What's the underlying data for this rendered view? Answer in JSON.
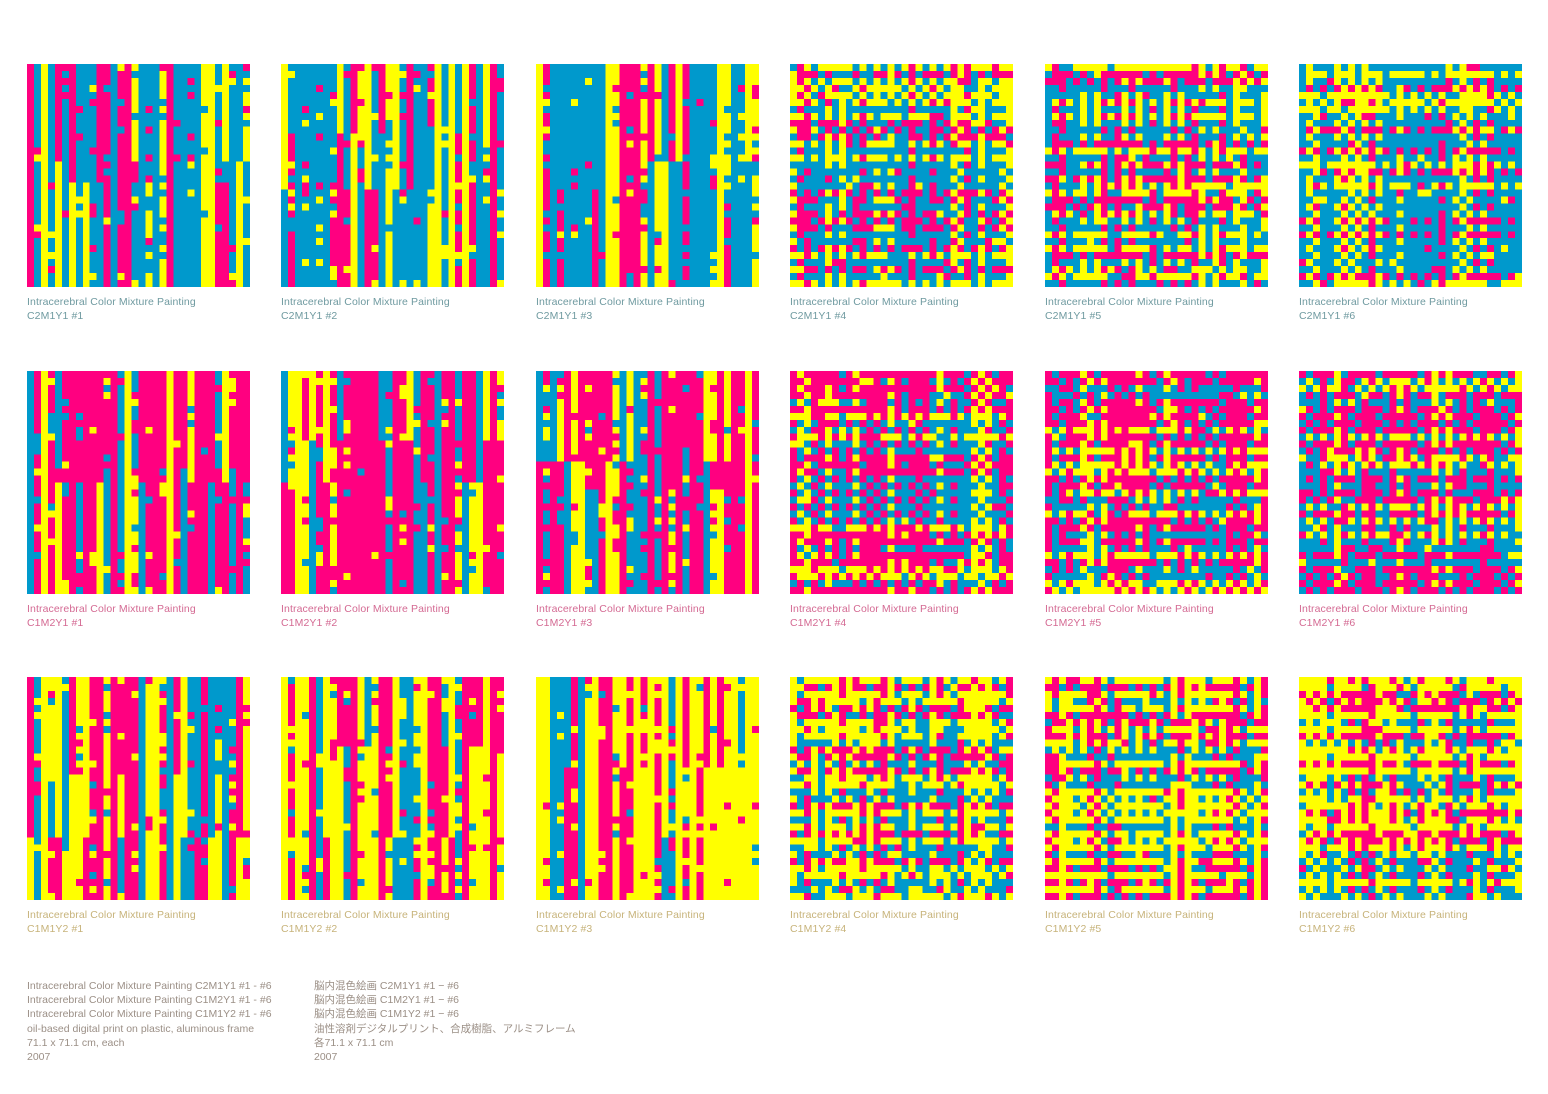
{
  "colors": {
    "cyan": "#0099cc",
    "magenta": "#ff0080",
    "yellow": "#ffff00",
    "caption_row1": "#6f9aa0",
    "caption_row2": "#d46a93",
    "caption_row3": "#c7b37a",
    "info_text": "#9b8f86"
  },
  "rows": [
    {
      "dominant": "cyan",
      "works": [
        {
          "title": "Intracerebral Color Mixture Painting",
          "code": "C2M1Y1  #1"
        },
        {
          "title": "Intracerebral Color Mixture Painting",
          "code": "C2M1Y1  #2"
        },
        {
          "title": "Intracerebral Color Mixture Painting",
          "code": "C2M1Y1  #3"
        },
        {
          "title": "Intracerebral Color Mixture Painting",
          "code": "C2M1Y1  #4"
        },
        {
          "title": "Intracerebral Color Mixture Painting",
          "code": "C2M1Y1  #5"
        },
        {
          "title": "Intracerebral Color Mixture Painting",
          "code": "C2M1Y1  #6"
        }
      ]
    },
    {
      "dominant": "magenta",
      "works": [
        {
          "title": "Intracerebral Color Mixture Painting",
          "code": "C1M2Y1  #1"
        },
        {
          "title": "Intracerebral Color Mixture Painting",
          "code": "C1M2Y1  #2"
        },
        {
          "title": "Intracerebral Color Mixture Painting",
          "code": "C1M2Y1  #3"
        },
        {
          "title": "Intracerebral Color Mixture Painting",
          "code": "C1M2Y1  #4"
        },
        {
          "title": "Intracerebral Color Mixture Painting",
          "code": "C1M2Y1  #5"
        },
        {
          "title": "Intracerebral Color Mixture Painting",
          "code": "C1M2Y1  #6"
        }
      ]
    },
    {
      "dominant": "yellow",
      "works": [
        {
          "title": "Intracerebral Color Mixture Painting",
          "code": "C1M1Y2  #1"
        },
        {
          "title": "Intracerebral Color Mixture Painting",
          "code": "C1M1Y2  #2"
        },
        {
          "title": "Intracerebral Color Mixture Painting",
          "code": "C1M1Y2  #3"
        },
        {
          "title": "Intracerebral Color Mixture Painting",
          "code": "C1M1Y2  #4"
        },
        {
          "title": "Intracerebral Color Mixture Painting",
          "code": "C1M1Y2  #5"
        },
        {
          "title": "Intracerebral Color Mixture Painting",
          "code": "C1M1Y2  #6"
        }
      ]
    }
  ],
  "info_en": [
    "Intracerebral Color Mixture Painting C2M1Y1  #1 - #6",
    "Intracerebral Color Mixture Painting C1M2Y1  #1 - #6",
    "Intracerebral Color Mixture Painting C1M1Y2  #1 - #6",
    "oil-based digital print on plastic, aluminous frame",
    "71.1 x 71.1 cm, each",
    "2007"
  ],
  "info_ja": [
    "脳内混色絵画 C2M1Y1  #1 − #6",
    "脳内混色絵画 C1M2Y1  #1 − #6",
    "脳内混色絵画 C1M1Y2  #1 − #6",
    "油性溶剤デジタルプリント、合成樹脂、アルミフレーム",
    "各71.1 x 71.1 cm",
    "2007"
  ]
}
